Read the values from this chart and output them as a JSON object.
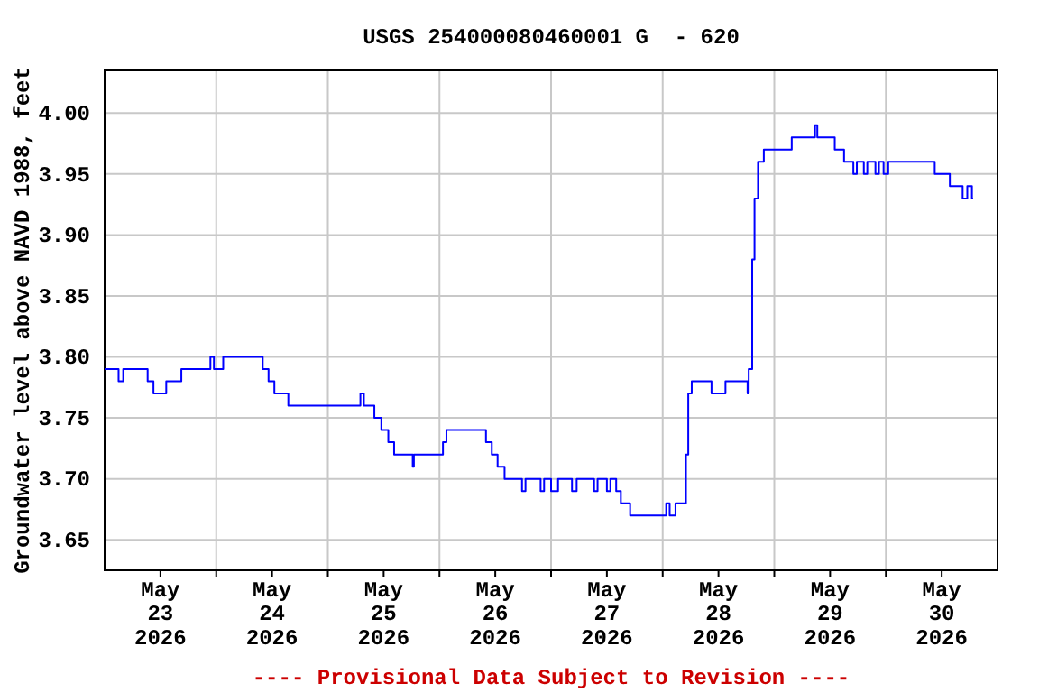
{
  "chart_data": {
    "type": "step",
    "title": "USGS 254000080460001 G  - 620",
    "ylabel": "Groundwater level above NAVD 1988, feet",
    "annotations": [
      "---- Provisional Data Subject to Revision ----"
    ],
    "xlim": [
      "2026-05-23T00:00",
      "2026-05-31T00:00"
    ],
    "xticks": [
      {
        "value": "2026-05-23T12:00",
        "label": "May\n23\n2026"
      },
      {
        "value": "2026-05-24T00:00",
        "label": null
      },
      {
        "value": "2026-05-24T12:00",
        "label": "May\n24\n2026"
      },
      {
        "value": "2026-05-25T00:00",
        "label": null
      },
      {
        "value": "2026-05-25T12:00",
        "label": "May\n25\n2026"
      },
      {
        "value": "2026-05-26T00:00",
        "label": null
      },
      {
        "value": "2026-05-26T12:00",
        "label": "May\n26\n2026"
      },
      {
        "value": "2026-05-27T00:00",
        "label": null
      },
      {
        "value": "2026-05-27T12:00",
        "label": "May\n27\n2026"
      },
      {
        "value": "2026-05-28T00:00",
        "label": null
      },
      {
        "value": "2026-05-28T12:00",
        "label": "May\n28\n2026"
      },
      {
        "value": "2026-05-29T00:00",
        "label": null
      },
      {
        "value": "2026-05-29T12:00",
        "label": "May\n29\n2026"
      },
      {
        "value": "2026-05-30T00:00",
        "label": null
      },
      {
        "value": "2026-05-30T12:00",
        "label": "May\n30\n2026"
      }
    ],
    "ylim": [
      3.625,
      4.035
    ],
    "yticks": [
      {
        "value": 3.65,
        "label": "3.65"
      },
      {
        "value": 3.7,
        "label": "3.70"
      },
      {
        "value": 3.75,
        "label": "3.75"
      },
      {
        "value": 3.8,
        "label": "3.80"
      },
      {
        "value": 3.85,
        "label": "3.85"
      },
      {
        "value": 3.9,
        "label": "3.90"
      },
      {
        "value": 3.95,
        "label": "3.95"
      },
      {
        "value": 4.0,
        "label": "4.00"
      }
    ],
    "grid": true,
    "line_style": "solid",
    "marker": "none",
    "x": [
      "2026-05-23T00:00",
      "2026-05-23T03:00",
      "2026-05-23T04:00",
      "2026-05-23T09:15",
      "2026-05-23T10:30",
      "2026-05-23T13:15",
      "2026-05-23T16:30",
      "2026-05-23T22:45",
      "2026-05-23T23:30",
      "2026-05-24T01:30",
      "2026-05-24T10:00",
      "2026-05-24T11:15",
      "2026-05-24T12:30",
      "2026-05-24T15:30",
      "2026-05-25T07:00",
      "2026-05-25T07:45",
      "2026-05-25T10:00",
      "2026-05-25T11:30",
      "2026-05-25T13:00",
      "2026-05-25T14:15",
      "2026-05-25T18:15",
      "2026-05-25T18:30",
      "2026-05-26T00:45",
      "2026-05-26T01:30",
      "2026-05-26T10:00",
      "2026-05-26T11:15",
      "2026-05-26T12:30",
      "2026-05-26T14:00",
      "2026-05-26T17:45",
      "2026-05-26T18:30",
      "2026-05-26T21:45",
      "2026-05-26T22:30",
      "2026-05-27T00:00",
      "2026-05-27T01:30",
      "2026-05-27T04:30",
      "2026-05-27T05:30",
      "2026-05-27T09:15",
      "2026-05-27T10:00",
      "2026-05-27T12:00",
      "2026-05-27T12:45",
      "2026-05-27T14:00",
      "2026-05-27T15:00",
      "2026-05-27T17:00",
      "2026-05-28T00:45",
      "2026-05-28T01:30",
      "2026-05-28T02:45",
      "2026-05-28T05:00",
      "2026-05-28T05:30",
      "2026-05-28T06:15",
      "2026-05-28T10:30",
      "2026-05-28T13:30",
      "2026-05-28T18:15",
      "2026-05-28T18:30",
      "2026-05-28T19:15",
      "2026-05-28T19:45",
      "2026-05-28T20:30",
      "2026-05-28T21:45",
      "2026-05-29T03:45",
      "2026-05-29T08:45",
      "2026-05-29T09:15",
      "2026-05-29T13:00",
      "2026-05-29T15:00",
      "2026-05-29T17:00",
      "2026-05-29T17:45",
      "2026-05-29T19:15",
      "2026-05-29T20:00",
      "2026-05-29T21:45",
      "2026-05-29T22:30",
      "2026-05-29T23:30",
      "2026-05-30T00:30",
      "2026-05-30T10:30",
      "2026-05-30T13:45",
      "2026-05-30T16:30",
      "2026-05-30T17:30",
      "2026-05-30T18:30",
      "2026-05-30T18:45"
    ],
    "series": [
      {
        "color": "#0000ff",
        "values": [
          3.79,
          3.78,
          3.79,
          3.78,
          3.77,
          3.78,
          3.79,
          3.8,
          3.79,
          3.8,
          3.79,
          3.78,
          3.77,
          3.76,
          3.77,
          3.76,
          3.75,
          3.74,
          3.73,
          3.72,
          3.71,
          3.72,
          3.73,
          3.74,
          3.73,
          3.72,
          3.71,
          3.7,
          3.69,
          3.7,
          3.69,
          3.7,
          3.69,
          3.7,
          3.69,
          3.7,
          3.69,
          3.7,
          3.69,
          3.7,
          3.69,
          3.68,
          3.67,
          3.68,
          3.67,
          3.68,
          3.72,
          3.77,
          3.78,
          3.77,
          3.78,
          3.77,
          3.79,
          3.88,
          3.93,
          3.96,
          3.97,
          3.98,
          3.99,
          3.98,
          3.97,
          3.96,
          3.95,
          3.96,
          3.95,
          3.96,
          3.95,
          3.96,
          3.95,
          3.96,
          3.95,
          3.94,
          3.93,
          3.94,
          3.93,
          3.93
        ]
      }
    ]
  }
}
